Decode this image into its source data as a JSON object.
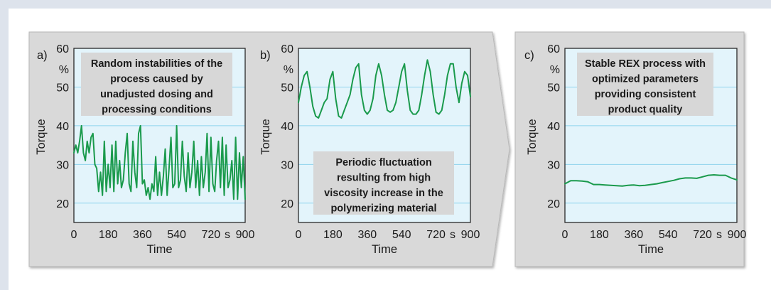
{
  "colors": {
    "outer_panel": "#d9d9d9",
    "plot_background": "#e3f4fb",
    "grid": "#8fd3ec",
    "line": "#1a9a4c",
    "annotation_box": "#d7d7d7",
    "page_border": "#dde3ec"
  },
  "chart_data": [
    {
      "type": "line",
      "panel_label": "a)",
      "title": "",
      "xlabel": "Time",
      "ylabel": "Torque",
      "unit_label": "%",
      "x_unit_label": "s",
      "xlim": [
        0,
        900
      ],
      "ylim": [
        15,
        60
      ],
      "yticks": [
        20,
        30,
        40,
        50,
        60
      ],
      "xticks": [
        0,
        180,
        360,
        540,
        720,
        900
      ],
      "grid": true,
      "annotation": [
        "Random instabilities of the",
        "process caused by",
        "unadjusted dosing and",
        "processing conditions"
      ],
      "series": [
        {
          "x": [
            0,
            10,
            20,
            30,
            40,
            50,
            60,
            70,
            80,
            90,
            100,
            110,
            120,
            130,
            140,
            150,
            160,
            170,
            180,
            190,
            200,
            210,
            220,
            230,
            240,
            250,
            260,
            270,
            280,
            290,
            300,
            310,
            320,
            330,
            340,
            350,
            360,
            370,
            380,
            390,
            400,
            410,
            420,
            430,
            440,
            450,
            460,
            470,
            480,
            490,
            500,
            510,
            520,
            530,
            540,
            550,
            560,
            570,
            580,
            590,
            600,
            610,
            620,
            630,
            640,
            650,
            660,
            670,
            680,
            690,
            700,
            710,
            720,
            730,
            740,
            750,
            760,
            770,
            780,
            790,
            800,
            810,
            820,
            830,
            840,
            850,
            860,
            870,
            880,
            890,
            900
          ],
          "y": [
            33,
            35,
            33,
            36,
            40,
            33,
            31,
            36,
            33,
            37,
            38,
            30,
            29,
            23,
            28,
            22,
            36,
            23,
            30,
            24,
            35,
            23,
            36,
            25,
            31,
            24,
            26,
            33,
            38,
            25,
            23,
            36,
            28,
            24,
            38,
            40,
            25,
            26,
            22,
            24,
            21,
            25,
            23,
            32,
            22,
            28,
            22,
            27,
            34,
            22,
            29,
            37,
            24,
            25,
            40,
            24,
            26,
            36,
            27,
            23,
            33,
            24,
            28,
            36,
            24,
            31,
            22,
            32,
            24,
            28,
            38,
            23,
            37,
            25,
            23,
            31,
            36,
            24,
            37,
            22,
            35,
            24,
            26,
            31,
            21,
            37,
            21,
            33,
            24,
            32,
            21
          ]
        }
      ]
    },
    {
      "type": "line",
      "panel_label": "b)",
      "title": "",
      "xlabel": "Time",
      "ylabel": "Torque",
      "unit_label": "%",
      "x_unit_label": "s",
      "xlim": [
        0,
        900
      ],
      "ylim": [
        15,
        60
      ],
      "yticks": [
        20,
        30,
        40,
        50,
        60
      ],
      "xticks": [
        0,
        180,
        360,
        540,
        720,
        900
      ],
      "grid": true,
      "annotation": [
        "Periodic fluctuation",
        "resulting from high",
        "viscosity increase in the",
        "polymerizing material"
      ],
      "series": [
        {
          "x": [
            0,
            15,
            30,
            45,
            60,
            75,
            90,
            105,
            120,
            135,
            150,
            165,
            180,
            195,
            210,
            225,
            240,
            255,
            270,
            285,
            300,
            315,
            330,
            345,
            360,
            375,
            390,
            405,
            420,
            435,
            450,
            465,
            480,
            495,
            510,
            525,
            540,
            555,
            570,
            585,
            600,
            615,
            630,
            645,
            660,
            675,
            690,
            705,
            720,
            735,
            750,
            765,
            780,
            795,
            810,
            825,
            840,
            855,
            870,
            885,
            900
          ],
          "y": [
            46,
            50,
            53,
            54,
            50,
            45,
            42.5,
            42,
            44,
            46,
            47,
            52,
            54,
            47,
            42.5,
            42,
            44,
            46,
            48,
            52,
            55,
            56,
            48,
            44,
            43,
            44,
            47,
            53,
            56,
            53,
            48,
            44,
            43.5,
            44,
            46,
            50,
            54,
            56,
            49,
            44,
            43,
            43,
            44,
            48,
            53,
            57,
            54,
            48,
            43.5,
            43,
            44,
            48,
            53,
            56,
            56,
            50,
            46,
            51,
            54,
            53,
            47.5
          ]
        }
      ]
    },
    {
      "type": "line",
      "panel_label": "c)",
      "title": "",
      "xlabel": "Time",
      "ylabel": "Torque",
      "unit_label": "%",
      "x_unit_label": "s",
      "xlim": [
        0,
        900
      ],
      "ylim": [
        15,
        60
      ],
      "yticks": [
        20,
        30,
        40,
        50,
        60
      ],
      "xticks": [
        0,
        180,
        360,
        540,
        720,
        900
      ],
      "grid": true,
      "annotation": [
        "Stable REX process with",
        "optimized parameters",
        "providing consistent",
        "product quality"
      ],
      "series": [
        {
          "x": [
            0,
            30,
            60,
            90,
            120,
            150,
            180,
            210,
            240,
            270,
            300,
            330,
            360,
            390,
            420,
            450,
            480,
            510,
            540,
            570,
            600,
            630,
            660,
            690,
            720,
            750,
            780,
            810,
            840,
            870,
            900
          ],
          "y": [
            25,
            25.8,
            25.8,
            25.7,
            25.5,
            24.8,
            24.8,
            24.7,
            24.6,
            24.5,
            24.4,
            24.6,
            24.7,
            24.5,
            24.6,
            24.8,
            25,
            25.3,
            25.6,
            25.9,
            26.3,
            26.5,
            26.5,
            26.4,
            26.8,
            27.2,
            27.3,
            27.2,
            27.2,
            26.5,
            26
          ]
        }
      ]
    }
  ]
}
